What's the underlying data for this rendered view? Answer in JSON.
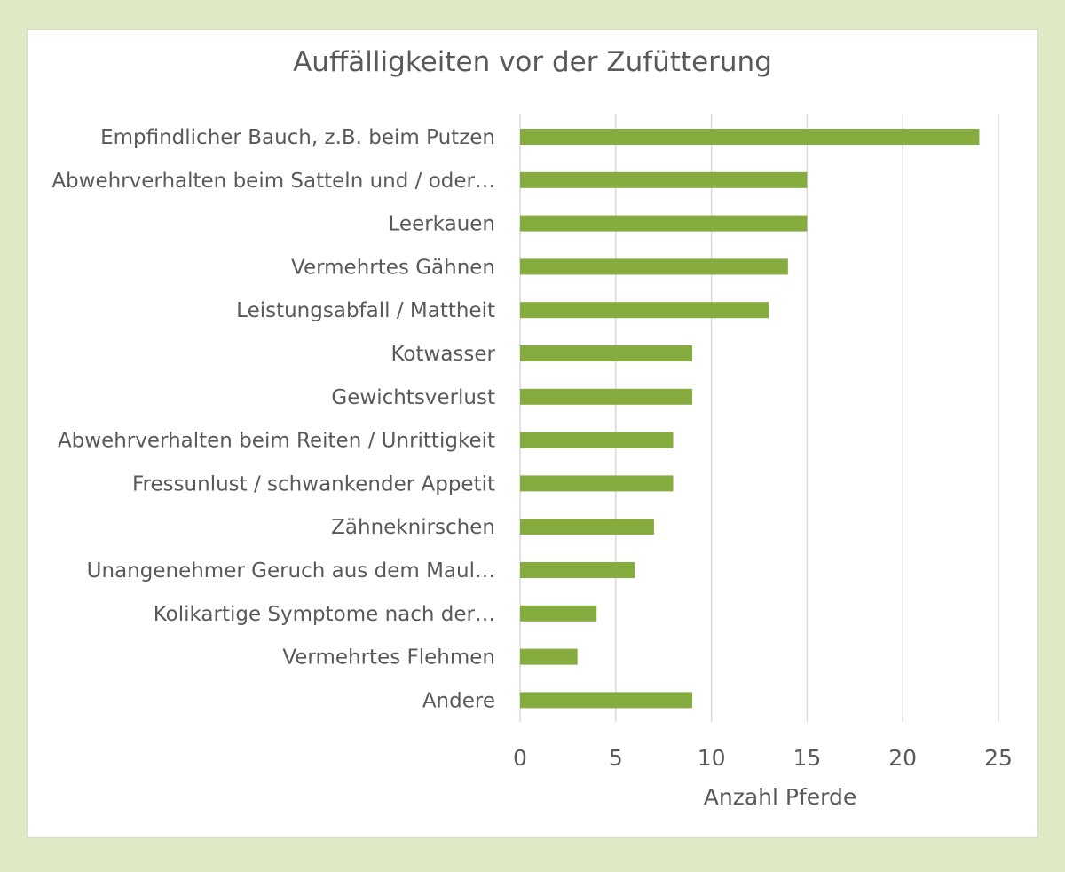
{
  "colors": {
    "background": "#dfe9c5",
    "card": "#ffffff",
    "bar": "#86ab3f",
    "grid": "#d9d9d9",
    "text": "#595959"
  },
  "chart_data": {
    "type": "bar",
    "orientation": "horizontal",
    "title": "Auffälligkeiten vor der Zufütterung",
    "xlabel": "Anzahl Pferde",
    "ylabel": "",
    "xlim": [
      0,
      25
    ],
    "xticks": [
      0,
      5,
      10,
      15,
      20,
      25
    ],
    "grid": "vertical",
    "legend": "none",
    "categories": [
      "Empfindlicher Bauch, z.B. beim Putzen",
      "Abwehrverhalten beim Satteln und / oder…",
      "Leerkauen",
      "Vermehrtes Gähnen",
      "Leistungsabfall / Mattheit",
      "Kotwasser",
      "Gewichtsverlust",
      "Abwehrverhalten beim Reiten / Unrittigkeit",
      "Fressunlust / schwankender Appetit",
      "Zähneknirschen",
      "Unangenehmer Geruch aus dem Maul…",
      "Kolikartige Symptome nach der…",
      "Vermehrtes Flehmen",
      "Andere"
    ],
    "values": [
      24,
      15,
      15,
      14,
      13,
      9,
      9,
      8,
      8,
      7,
      6,
      4,
      3,
      9
    ]
  }
}
